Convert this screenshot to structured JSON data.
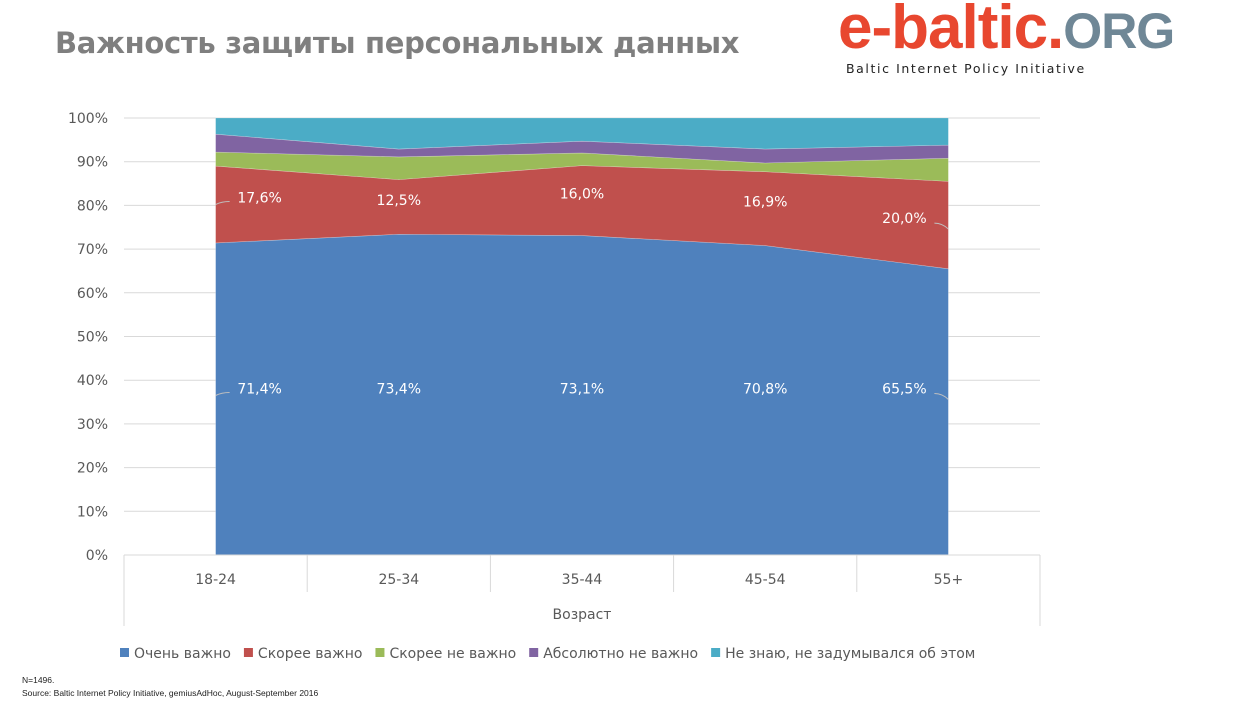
{
  "title": "Важность защиты персональных данных",
  "logo": {
    "main": "e-baltic.",
    "org": "ORG",
    "tagline": "Baltic Internet Policy Initiative"
  },
  "chart_data": {
    "type": "area",
    "stacked": true,
    "percent": true,
    "categories": [
      "18-24",
      "25-34",
      "35-44",
      "45-54",
      "55+"
    ],
    "xlabel": "Возраст",
    "ylabel": "",
    "ylim": [
      0,
      100
    ],
    "yticks": [
      "0%",
      "10%",
      "20%",
      "30%",
      "40%",
      "50%",
      "60%",
      "70%",
      "80%",
      "90%",
      "100%"
    ],
    "grid": true,
    "legend_position": "bottom",
    "series": [
      {
        "name": "Очень важно",
        "color": "#4f81bd",
        "values": [
          71.4,
          73.4,
          73.1,
          70.8,
          65.5
        ],
        "labels": [
          "71,4%",
          "73,4%",
          "73,1%",
          "70,8%",
          "65,5%"
        ]
      },
      {
        "name": "Скорее важно",
        "color": "#c0504d",
        "values": [
          17.6,
          12.5,
          16.0,
          16.9,
          20.0
        ],
        "labels": [
          "17,6%",
          "12,5%",
          "16,0%",
          "16,9%",
          "20,0%"
        ]
      },
      {
        "name": "Скорее не важно",
        "color": "#9bbb59",
        "values": [
          3.2,
          5.2,
          2.9,
          2.0,
          5.3
        ]
      },
      {
        "name": "Абсолютно не важно",
        "color": "#8064a2",
        "values": [
          4.1,
          1.8,
          2.7,
          3.2,
          3.0
        ]
      },
      {
        "name": "Не знаю, не задумывался об этом",
        "color": "#4bacc6",
        "values": [
          3.7,
          7.1,
          5.3,
          7.1,
          6.2
        ]
      }
    ]
  },
  "footnote": {
    "n": "N=1496.",
    "source": "Source: Baltic Internet Policy Initiative,  gemiusAdHoc, August-September 2016"
  }
}
